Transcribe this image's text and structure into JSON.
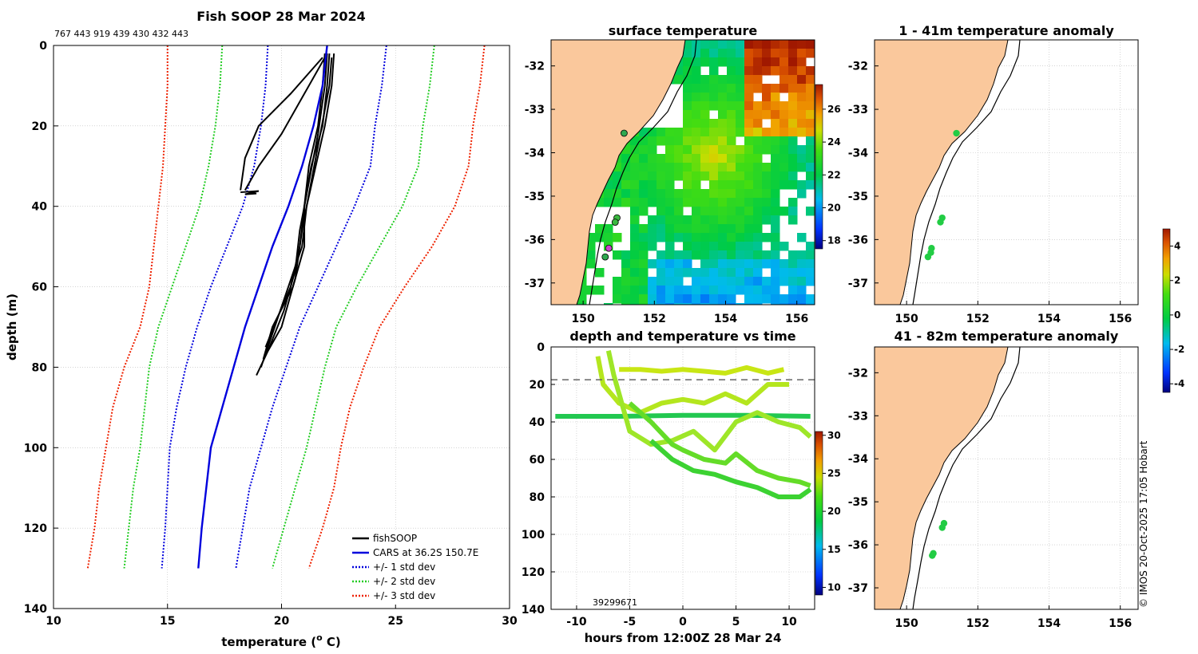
{
  "colors": {
    "fish": "#000000",
    "cars": "#0000dd",
    "std1": "#0000dd",
    "std2": "#22cc22",
    "std3": "#ee2200",
    "land": "#fac89c",
    "grid": "#bbbbbb",
    "dash": "#666666"
  },
  "chart_data": [
    {
      "id": "profile",
      "type": "line",
      "title": "Fish SOOP 28 Mar 2024",
      "top_label": "767 443 919 439 430 432 443",
      "xlabel": "temperature (",
      "xlabel_sup": "o",
      "xlabel_end": " C)",
      "ylabel": "depth (m)",
      "xlim": [
        10,
        30
      ],
      "ylim": [
        0,
        140
      ],
      "xticks": [
        10,
        15,
        20,
        25,
        30
      ],
      "yticks": [
        0,
        20,
        40,
        60,
        80,
        100,
        120,
        140
      ],
      "legend": [
        "fishSOOP",
        "CARS at 36.2S 150.7E",
        "+/- 1 std dev",
        "+/- 2 std dev",
        "+/- 3 std dev"
      ],
      "depths": [
        0,
        10,
        20,
        30,
        40,
        50,
        60,
        70,
        80,
        90,
        100,
        110,
        120,
        130
      ],
      "cars": [
        22.0,
        21.8,
        21.4,
        20.9,
        20.3,
        19.6,
        19.0,
        18.4,
        17.9,
        17.4,
        16.9,
        16.7,
        16.5,
        16.35
      ],
      "std_minus1": [
        19.4,
        19.3,
        19.1,
        18.8,
        18.3,
        17.6,
        16.9,
        16.3,
        15.8,
        15.4,
        15.1,
        15.0,
        14.9,
        14.75
      ],
      "std_plus1": [
        24.6,
        24.4,
        24.1,
        23.9,
        23.2,
        22.4,
        21.6,
        20.8,
        20.2,
        19.6,
        19.1,
        18.6,
        18.3,
        18.0
      ],
      "std_minus2": [
        17.4,
        17.3,
        17.1,
        16.8,
        16.4,
        15.8,
        15.2,
        14.6,
        14.2,
        14.0,
        13.8,
        13.5,
        13.3,
        13.1
      ],
      "std_plus2": [
        26.7,
        26.5,
        26.2,
        26.0,
        25.3,
        24.3,
        23.3,
        22.4,
        21.9,
        21.5,
        21.1,
        20.6,
        20.1,
        19.6
      ],
      "std_minus3": [
        15.0,
        15.0,
        14.9,
        14.8,
        14.6,
        14.4,
        14.2,
        13.8,
        13.1,
        12.6,
        12.3,
        12.0,
        11.8,
        11.5
      ],
      "std_plus3": [
        28.9,
        28.7,
        28.4,
        28.2,
        27.6,
        26.6,
        25.4,
        24.3,
        23.6,
        23.0,
        22.6,
        22.3,
        21.8,
        21.2
      ],
      "fish_casts": [
        {
          "d": [
            2,
            10,
            20,
            30,
            40,
            50,
            60,
            70,
            78
          ],
          "t": [
            22.1,
            22.0,
            21.8,
            21.3,
            21.0,
            21.0,
            20.5,
            19.6,
            19.2
          ]
        },
        {
          "d": [
            2,
            10,
            20,
            30,
            40,
            50,
            60,
            70,
            80
          ],
          "t": [
            22.3,
            22.2,
            21.9,
            21.5,
            21.1,
            20.9,
            20.3,
            19.7,
            19.1
          ]
        },
        {
          "d": [
            2,
            10,
            20,
            30,
            40,
            50,
            60,
            68,
            75
          ],
          "t": [
            21.9,
            21.8,
            21.6,
            21.2,
            21.0,
            20.8,
            20.4,
            19.8,
            19.3
          ]
        },
        {
          "d": [
            3,
            12,
            20,
            28,
            36
          ],
          "t": [
            21.8,
            20.4,
            19.0,
            18.4,
            18.2
          ]
        },
        {
          "d": [
            3,
            12,
            22,
            30,
            36
          ],
          "t": [
            21.9,
            21.0,
            20.0,
            19.0,
            18.4
          ]
        },
        {
          "d": [
            2,
            10,
            22,
            34,
            46,
            56,
            66,
            76,
            82
          ],
          "t": [
            22.0,
            21.9,
            21.6,
            21.2,
            20.8,
            20.6,
            20.1,
            19.4,
            18.9
          ]
        },
        {
          "d": [
            3,
            10,
            22,
            34,
            46,
            58,
            70,
            76
          ],
          "t": [
            22.2,
            22.1,
            21.7,
            21.3,
            20.9,
            20.6,
            20.0,
            19.4
          ]
        }
      ],
      "surface_block_label": "",
      "bottom_labels_note": ""
    },
    {
      "id": "sst_map",
      "type": "heatmap",
      "title": "surface temperature",
      "xticks": [
        150,
        152,
        154,
        156
      ],
      "yticks": [
        -32,
        -33,
        -34,
        -35,
        -36,
        -37
      ],
      "xlim": [
        149.1,
        156.5
      ],
      "ylim": [
        -37.5,
        -31.4
      ],
      "colorbar_ticks": [
        18,
        20,
        22,
        24,
        26
      ],
      "colorbar_range": [
        17.5,
        27.5
      ]
    },
    {
      "id": "depth_time",
      "type": "scatter",
      "title": "depth and temperature vs time",
      "xlabel": "hours from 12:00Z 28 Mar 24",
      "xticks": [
        -10,
        -5,
        0,
        5,
        10
      ],
      "yticks": [
        0,
        20,
        40,
        60,
        80,
        100,
        120,
        140
      ],
      "xlim": [
        -12.4,
        12.4
      ],
      "ylim": [
        0,
        140
      ],
      "colorbar_ticks": [
        10,
        15,
        20,
        25,
        30
      ],
      "colorbar_range": [
        9,
        30.5
      ],
      "dashed_depth": 17.5,
      "bottom_text": "39299671"
    },
    {
      "id": "anom_upper",
      "type": "scatter",
      "title": "1 - 41m temperature anomaly",
      "xticks": [
        150,
        152,
        154,
        156
      ],
      "yticks": [
        -32,
        -33,
        -34,
        -35,
        -36,
        -37
      ],
      "xlim": [
        149.1,
        156.5
      ],
      "ylim": [
        -37.5,
        -31.4
      ],
      "points": [
        [
          151.4,
          -33.55
        ],
        [
          151.0,
          -35.5
        ],
        [
          150.95,
          -35.6
        ],
        [
          150.7,
          -36.2
        ],
        [
          150.68,
          -36.3
        ],
        [
          150.6,
          -36.4
        ]
      ]
    },
    {
      "id": "anom_lower",
      "type": "scatter",
      "title": "41 - 82m temperature anomaly",
      "xticks": [
        150,
        152,
        154,
        156
      ],
      "yticks": [
        -32,
        -33,
        -34,
        -35,
        -36,
        -37
      ],
      "xlim": [
        149.1,
        156.5
      ],
      "ylim": [
        -37.5,
        -31.4
      ],
      "points": [
        [
          151.05,
          -35.5
        ],
        [
          151.0,
          -35.6
        ],
        [
          150.75,
          -36.2
        ],
        [
          150.72,
          -36.25
        ]
      ]
    },
    {
      "id": "anom_colorbar",
      "type": "heatmap",
      "colorbar_ticks": [
        4,
        2,
        0,
        -2,
        -4
      ],
      "colorbar_range": [
        -4.5,
        5.0
      ]
    }
  ],
  "copyright": "© IMOS 20-Oct-2025 17:05 Hobart"
}
